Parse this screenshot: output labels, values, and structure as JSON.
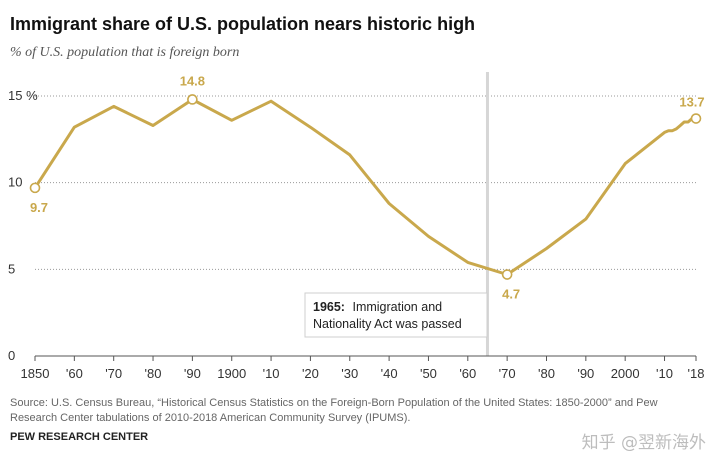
{
  "header": {
    "title": "Immigrant share of U.S. population nears historic high",
    "subtitle": "% of U.S. population that is foreign born"
  },
  "chart_data": {
    "type": "line",
    "title": "Immigrant share of U.S. population nears historic high",
    "subtitle": "% of U.S. population that is foreign born",
    "xlabel": "",
    "ylabel": "",
    "xlim": [
      1850,
      2018
    ],
    "ylim": [
      0,
      15
    ],
    "y_ticks": [
      {
        "value": 0,
        "label": "0"
      },
      {
        "value": 5,
        "label": "5"
      },
      {
        "value": 10,
        "label": "10"
      },
      {
        "value": 15,
        "label": "15 %"
      }
    ],
    "x_ticks": [
      {
        "value": 1850,
        "label": "1850"
      },
      {
        "value": 1860,
        "label": "'60"
      },
      {
        "value": 1870,
        "label": "'70"
      },
      {
        "value": 1880,
        "label": "'80"
      },
      {
        "value": 1890,
        "label": "'90"
      },
      {
        "value": 1900,
        "label": "1900"
      },
      {
        "value": 1910,
        "label": "'10"
      },
      {
        "value": 1920,
        "label": "'20"
      },
      {
        "value": 1930,
        "label": "'30"
      },
      {
        "value": 1940,
        "label": "'40"
      },
      {
        "value": 1950,
        "label": "'50"
      },
      {
        "value": 1960,
        "label": "'60"
      },
      {
        "value": 1970,
        "label": "'70"
      },
      {
        "value": 1980,
        "label": "'80"
      },
      {
        "value": 1990,
        "label": "'90"
      },
      {
        "value": 2000,
        "label": "2000"
      },
      {
        "value": 2010,
        "label": "'10"
      },
      {
        "value": 2018,
        "label": "'18"
      }
    ],
    "grid": "horizontal dotted",
    "line_color": "#c9a84c",
    "series": [
      {
        "name": "",
        "x": [
          1850,
          1860,
          1870,
          1880,
          1890,
          1900,
          1910,
          1920,
          1930,
          1940,
          1950,
          1960,
          1970,
          1980,
          1990,
          2000,
          2010,
          2011,
          2012,
          2013,
          2014,
          2015,
          2016,
          2017,
          2018
        ],
        "y": [
          9.7,
          13.2,
          14.4,
          13.3,
          14.8,
          13.6,
          14.7,
          13.2,
          11.6,
          8.8,
          6.9,
          5.4,
          4.7,
          6.2,
          7.9,
          11.1,
          12.9,
          13.0,
          13.0,
          13.1,
          13.3,
          13.5,
          13.5,
          13.7,
          13.7
        ]
      }
    ],
    "highlighted_points": [
      {
        "x": 1850,
        "y": 9.7,
        "label": "9.7"
      },
      {
        "x": 1890,
        "y": 14.8,
        "label": "14.8"
      },
      {
        "x": 1970,
        "y": 4.7,
        "label": "4.7"
      },
      {
        "x": 2018,
        "y": 13.7,
        "label": "13.7"
      }
    ],
    "annotation": {
      "x": 1965,
      "bold": "1965:",
      "text": "Immigration and",
      "text2": "Nationality Act was passed"
    }
  },
  "footer": {
    "source": "Source: U.S. Census Bureau, “Historical Census Statistics on the Foreign-Born Population of the United States: 1850-2000” and Pew Research Center tabulations of 2010-2018 American Community Survey (IPUMS).",
    "brand": "PEW RESEARCH CENTER",
    "watermark": "知乎 @翌新海外"
  }
}
